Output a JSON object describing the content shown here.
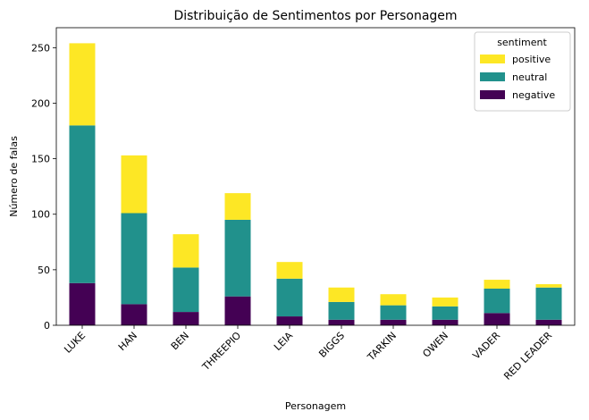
{
  "chart_data": {
    "type": "bar",
    "stacked": true,
    "title": "Distribuição de Sentimentos por Personagem",
    "xlabel": "Personagem",
    "ylabel": "Número de falas",
    "ylim": [
      0,
      268
    ],
    "yticks": [
      0,
      50,
      100,
      150,
      200,
      250
    ],
    "categories": [
      "LUKE",
      "HAN",
      "BEN",
      "THREEPIO",
      "LEIA",
      "BIGGS",
      "TARKIN",
      "OWEN",
      "VADER",
      "RED LEADER"
    ],
    "series": [
      {
        "name": "negative",
        "color": "#440154",
        "values": [
          38,
          19,
          12,
          26,
          8,
          5,
          5,
          5,
          11,
          5
        ]
      },
      {
        "name": "neutral",
        "color": "#21918c",
        "values": [
          142,
          82,
          40,
          69,
          34,
          16,
          13,
          12,
          22,
          29
        ]
      },
      {
        "name": "positive",
        "color": "#fde725",
        "values": [
          74,
          52,
          30,
          24,
          15,
          13,
          10,
          8,
          8,
          3
        ]
      }
    ],
    "legend": {
      "title": "sentiment",
      "position": "top-right",
      "entries": [
        "positive",
        "neutral",
        "negative"
      ]
    },
    "grid": false
  }
}
